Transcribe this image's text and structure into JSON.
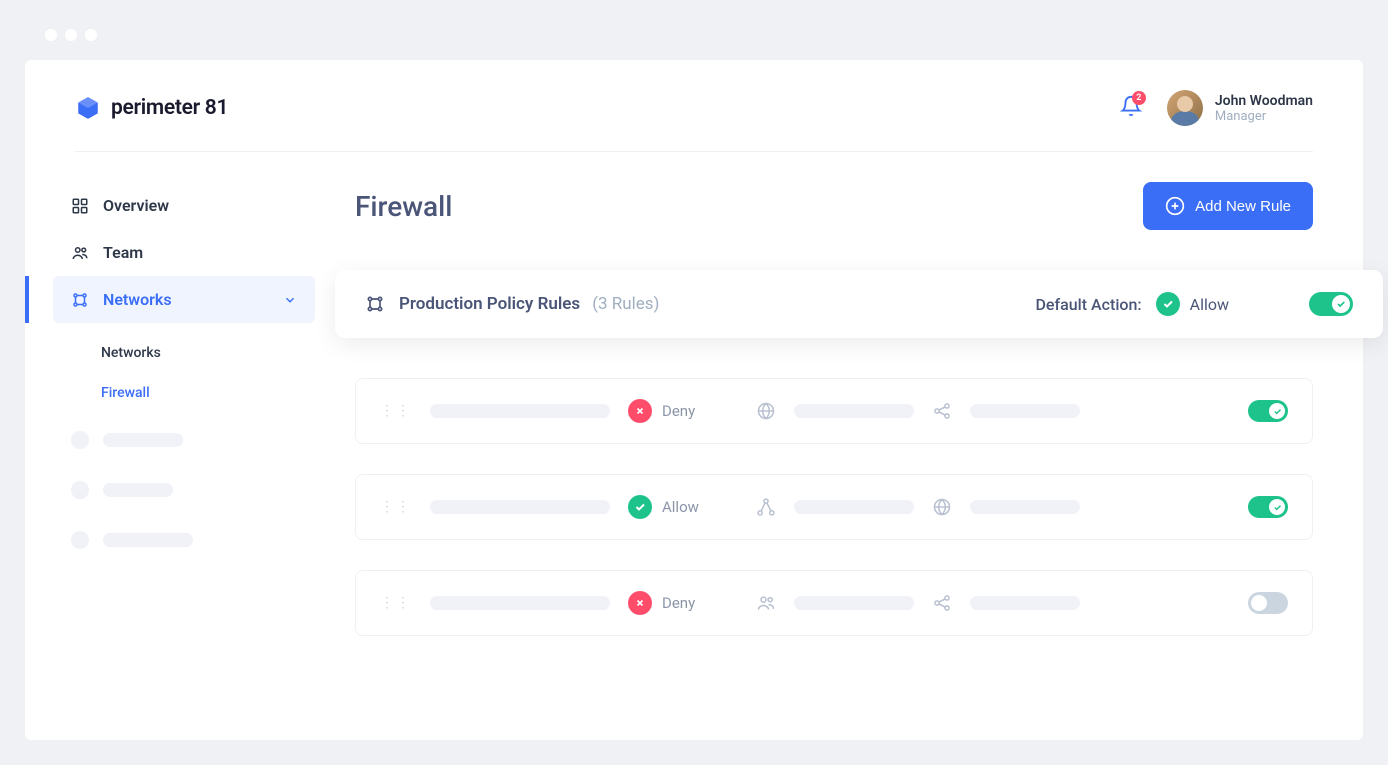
{
  "brand": {
    "name": "perimeter 81"
  },
  "header": {
    "notification_count": "2",
    "user": {
      "name": "John Woodman",
      "role": "Manager"
    }
  },
  "sidebar": {
    "items": [
      {
        "label": "Overview"
      },
      {
        "label": "Team"
      },
      {
        "label": "Networks"
      }
    ],
    "sub": [
      {
        "label": "Networks"
      },
      {
        "label": "Firewall"
      }
    ]
  },
  "page": {
    "title": "Firewall",
    "add_button": "Add New Rule"
  },
  "policy": {
    "title": "Production Policy Rules",
    "count": "(3 Rules)",
    "default_label": "Default Action:",
    "default_action": "Allow"
  },
  "rules": [
    {
      "action": "Deny",
      "action_type": "deny",
      "enabled": true,
      "icon1": "globe",
      "icon2": "nodes"
    },
    {
      "action": "Allow",
      "action_type": "allow",
      "enabled": true,
      "icon1": "share",
      "icon2": "globe"
    },
    {
      "action": "Deny",
      "action_type": "deny",
      "enabled": false,
      "icon1": "people",
      "icon2": "nodes"
    }
  ],
  "colors": {
    "primary": "#3b6ef6",
    "success": "#1ec28b",
    "danger": "#fd4d6b",
    "text": "#4a5578",
    "muted": "#a0aec0",
    "bg": "#eff1f4"
  }
}
